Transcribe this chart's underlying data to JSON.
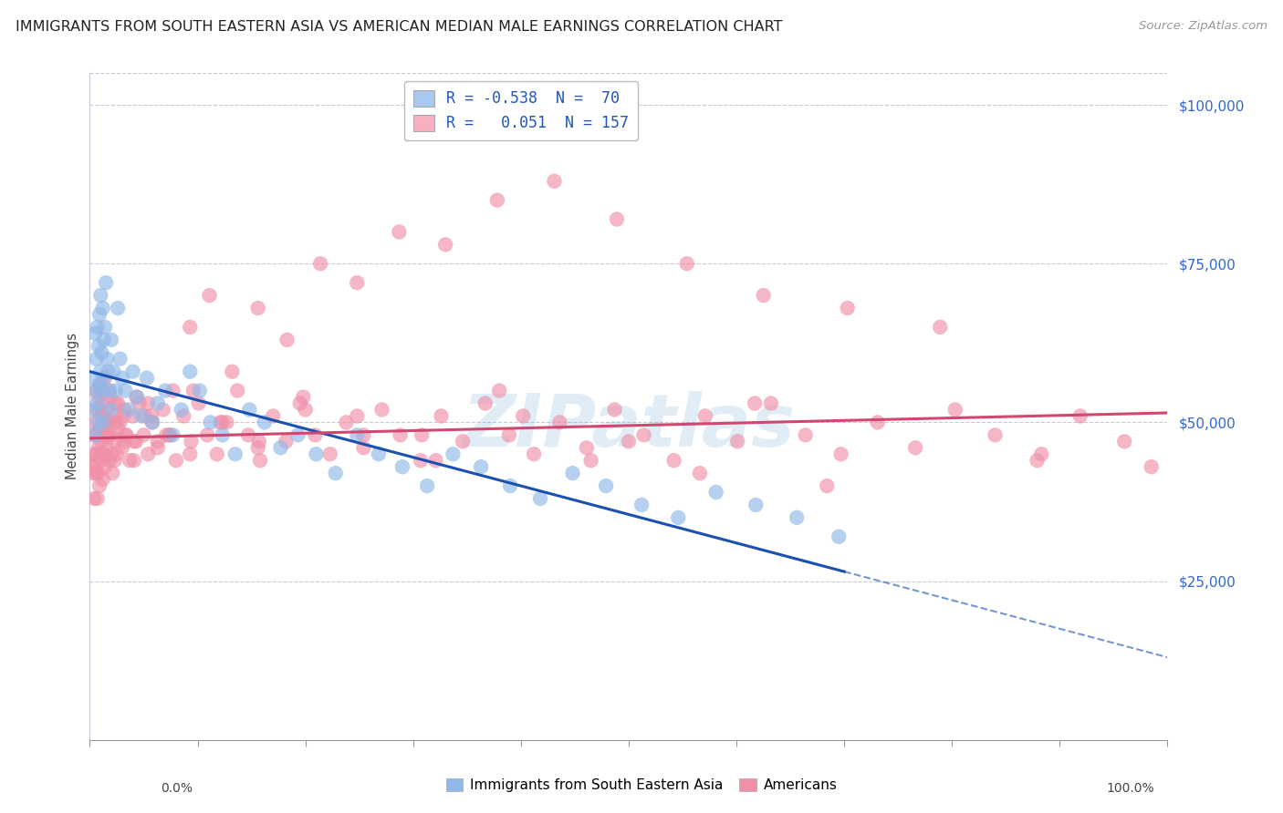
{
  "title": "IMMIGRANTS FROM SOUTH EASTERN ASIA VS AMERICAN MEDIAN MALE EARNINGS CORRELATION CHART",
  "source": "Source: ZipAtlas.com",
  "ylabel": "Median Male Earnings",
  "ytick_values": [
    25000,
    50000,
    75000,
    100000
  ],
  "legend1_color": "#a8c8f0",
  "legend2_color": "#f8b0c0",
  "legend1_label": "R = -0.538  N =  70",
  "legend2_label": "R =   0.051  N = 157",
  "series1_label": "Immigrants from South Eastern Asia",
  "series2_label": "Americans",
  "series1_dot_color": "#90b8e8",
  "series2_dot_color": "#f090a8",
  "series1_line_color": "#1a50b0",
  "series2_line_color": "#d04870",
  "watermark_text": "ZIPatlas",
  "background_color": "#ffffff",
  "grid_color": "#c8c8d8",
  "ylim": [
    0,
    105000
  ],
  "xlim": [
    0.0,
    1.0
  ],
  "series1_R": -0.538,
  "series2_R": 0.051,
  "series1_intercept": 58000,
  "series1_slope": -45000,
  "series2_intercept": 47500,
  "series2_slope": 4000,
  "series1_x": [
    0.003,
    0.004,
    0.005,
    0.005,
    0.006,
    0.006,
    0.007,
    0.007,
    0.008,
    0.008,
    0.009,
    0.009,
    0.01,
    0.01,
    0.011,
    0.011,
    0.012,
    0.012,
    0.013,
    0.013,
    0.014,
    0.015,
    0.016,
    0.017,
    0.018,
    0.019,
    0.02,
    0.022,
    0.024,
    0.026,
    0.028,
    0.03,
    0.033,
    0.036,
    0.04,
    0.044,
    0.048,
    0.053,
    0.058,
    0.063,
    0.07,
    0.077,
    0.085,
    0.093,
    0.102,
    0.112,
    0.123,
    0.135,
    0.148,
    0.162,
    0.177,
    0.193,
    0.21,
    0.228,
    0.248,
    0.268,
    0.29,
    0.313,
    0.337,
    0.363,
    0.39,
    0.418,
    0.448,
    0.479,
    0.512,
    0.546,
    0.581,
    0.618,
    0.656,
    0.695
  ],
  "series1_y": [
    57000,
    52000,
    64000,
    48000,
    60000,
    55000,
    65000,
    53000,
    62000,
    50000,
    67000,
    56000,
    58000,
    70000,
    55000,
    61000,
    68000,
    50000,
    63000,
    57000,
    65000,
    72000,
    60000,
    58000,
    55000,
    52000,
    63000,
    58000,
    55000,
    68000,
    60000,
    57000,
    55000,
    52000,
    58000,
    54000,
    51000,
    57000,
    50000,
    53000,
    55000,
    48000,
    52000,
    58000,
    55000,
    50000,
    48000,
    45000,
    52000,
    50000,
    46000,
    48000,
    45000,
    42000,
    48000,
    45000,
    43000,
    40000,
    45000,
    43000,
    40000,
    38000,
    42000,
    40000,
    37000,
    35000,
    39000,
    37000,
    35000,
    32000
  ],
  "series2_x": [
    0.003,
    0.004,
    0.005,
    0.005,
    0.006,
    0.006,
    0.007,
    0.007,
    0.008,
    0.008,
    0.009,
    0.009,
    0.01,
    0.01,
    0.011,
    0.011,
    0.012,
    0.012,
    0.013,
    0.013,
    0.014,
    0.014,
    0.015,
    0.015,
    0.016,
    0.017,
    0.018,
    0.019,
    0.02,
    0.021,
    0.022,
    0.023,
    0.024,
    0.025,
    0.026,
    0.028,
    0.03,
    0.032,
    0.034,
    0.037,
    0.04,
    0.043,
    0.046,
    0.05,
    0.054,
    0.058,
    0.063,
    0.068,
    0.074,
    0.08,
    0.087,
    0.094,
    0.101,
    0.109,
    0.118,
    0.127,
    0.137,
    0.147,
    0.158,
    0.17,
    0.182,
    0.195,
    0.209,
    0.223,
    0.238,
    0.254,
    0.271,
    0.288,
    0.307,
    0.326,
    0.346,
    0.367,
    0.389,
    0.412,
    0.436,
    0.461,
    0.487,
    0.514,
    0.542,
    0.571,
    0.601,
    0.632,
    0.664,
    0.697,
    0.731,
    0.766,
    0.803,
    0.84,
    0.879,
    0.919,
    0.96,
    0.003,
    0.007,
    0.011,
    0.015,
    0.02,
    0.026,
    0.033,
    0.041,
    0.051,
    0.063,
    0.077,
    0.093,
    0.111,
    0.132,
    0.156,
    0.183,
    0.214,
    0.248,
    0.287,
    0.33,
    0.378,
    0.431,
    0.489,
    0.554,
    0.625,
    0.703,
    0.789,
    0.883,
    0.985,
    0.004,
    0.006,
    0.009,
    0.013,
    0.018,
    0.024,
    0.032,
    0.043,
    0.057,
    0.074,
    0.096,
    0.123,
    0.157,
    0.198,
    0.248,
    0.308,
    0.38,
    0.465,
    0.566,
    0.684,
    0.005,
    0.008,
    0.012,
    0.017,
    0.023,
    0.031,
    0.041,
    0.054,
    0.071,
    0.093,
    0.121,
    0.156,
    0.2,
    0.254,
    0.321,
    0.402,
    0.5,
    0.617
  ],
  "series2_y": [
    43000,
    38000,
    50000,
    45000,
    55000,
    42000,
    48000,
    52000,
    46000,
    54000,
    40000,
    49000,
    56000,
    44000,
    51000,
    47000,
    53000,
    41000,
    50000,
    45000,
    57000,
    43000,
    48000,
    52000,
    46000,
    50000,
    44000,
    54000,
    48000,
    42000,
    51000,
    47000,
    53000,
    45000,
    49000,
    50000,
    46000,
    52000,
    48000,
    44000,
    51000,
    47000,
    53000,
    48000,
    45000,
    50000,
    46000,
    52000,
    48000,
    44000,
    51000,
    47000,
    53000,
    48000,
    45000,
    50000,
    55000,
    48000,
    44000,
    51000,
    47000,
    53000,
    48000,
    45000,
    50000,
    46000,
    52000,
    48000,
    44000,
    51000,
    47000,
    53000,
    48000,
    45000,
    50000,
    46000,
    52000,
    48000,
    44000,
    51000,
    47000,
    53000,
    48000,
    45000,
    50000,
    46000,
    52000,
    48000,
    44000,
    51000,
    47000,
    42000,
    38000,
    55000,
    50000,
    45000,
    53000,
    48000,
    44000,
    51000,
    47000,
    55000,
    65000,
    70000,
    58000,
    68000,
    63000,
    75000,
    72000,
    80000,
    78000,
    85000,
    88000,
    82000,
    75000,
    70000,
    68000,
    65000,
    45000,
    43000,
    48000,
    45000,
    52000,
    48000,
    55000,
    50000,
    47000,
    54000,
    51000,
    48000,
    55000,
    50000,
    47000,
    54000,
    51000,
    48000,
    55000,
    44000,
    42000,
    40000,
    44000,
    42000,
    45000,
    48000,
    44000,
    51000,
    47000,
    53000,
    48000,
    45000,
    50000,
    46000,
    52000,
    48000,
    44000,
    51000,
    47000,
    53000
  ]
}
